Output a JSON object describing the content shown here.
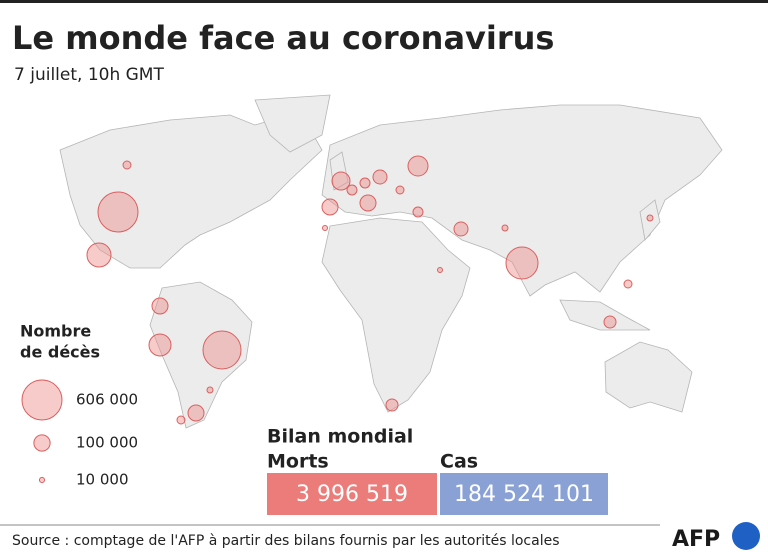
{
  "title": "Le monde face au coronavirus",
  "subtitle": "7 juillet, 10h GMT",
  "legend": {
    "title_lines": [
      "Nombre",
      "de décès"
    ],
    "items": [
      {
        "value": 606000,
        "label": "606 000"
      },
      {
        "value": 100000,
        "label": "100 000"
      },
      {
        "value": 10000,
        "label": "10 000"
      }
    ]
  },
  "summary": {
    "heading": "Bilan mondial",
    "deaths": {
      "label": "Morts",
      "value": "3 996 519"
    },
    "cases": {
      "label": "Cas",
      "value": "184 524 101"
    }
  },
  "source": "Source : comptage de l'AFP à partir des bilans fournis par les autorités locales",
  "logo": "AFP"
}
